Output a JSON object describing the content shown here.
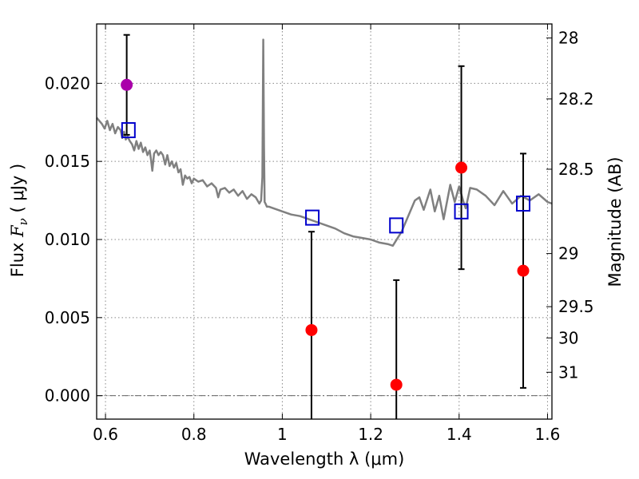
{
  "chart_data": {
    "type": "scatter",
    "xlabel": "Wavelength  λ (μm)",
    "ylabel": "Flux  F_ν  ( μJy )",
    "ylabel_parts": {
      "pre": "Flux  ",
      "var": "F",
      "sub": "ν",
      "post": "  ( μJy )"
    },
    "y2label": "Magnitude (AB)",
    "xlim": [
      0.58,
      1.61
    ],
    "ylim": [
      -0.0015,
      0.0238
    ],
    "grid": true,
    "x_ticks": [
      0.6,
      0.8,
      1.0,
      1.2,
      1.4,
      1.6
    ],
    "x_tick_labels": [
      "0.6",
      "0.8",
      "1",
      "1.2",
      "1.4",
      "1.6"
    ],
    "y_ticks": [
      0.0,
      0.005,
      0.01,
      0.015,
      0.02
    ],
    "y_tick_labels": [
      "0.000",
      "0.005",
      "0.010",
      "0.015",
      "0.020"
    ],
    "mag_ticks": [
      {
        "label": "28",
        "flux": 0.0229
      },
      {
        "label": "28.2",
        "flux": 0.019
      },
      {
        "label": "28.5",
        "flux": 0.0145
      },
      {
        "label": "29",
        "flux": 0.0091
      },
      {
        "label": "29.5",
        "flux": 0.0057
      },
      {
        "label": "30",
        "flux": 0.0037
      },
      {
        "label": "31",
        "flux": 0.0015
      }
    ],
    "colors": {
      "model": "#808080",
      "observed": "#ff0000",
      "highlighted": "#aa00aa",
      "model_band": "#0000cc",
      "errorbar": "#000000",
      "grid": "#888888"
    },
    "model_spectrum": {
      "x": [
        0.58,
        0.592,
        0.598,
        0.604,
        0.61,
        0.616,
        0.622,
        0.628,
        0.634,
        0.638,
        0.642,
        0.646,
        0.65,
        0.655,
        0.66,
        0.665,
        0.67,
        0.675,
        0.68,
        0.685,
        0.69,
        0.695,
        0.7,
        0.703,
        0.706,
        0.71,
        0.715,
        0.72,
        0.725,
        0.73,
        0.735,
        0.74,
        0.745,
        0.75,
        0.755,
        0.76,
        0.765,
        0.77,
        0.775,
        0.78,
        0.785,
        0.79,
        0.795,
        0.8,
        0.81,
        0.82,
        0.83,
        0.84,
        0.85,
        0.855,
        0.86,
        0.87,
        0.88,
        0.89,
        0.9,
        0.91,
        0.92,
        0.93,
        0.94,
        0.948,
        0.952,
        0.955,
        0.957,
        0.9585,
        0.96,
        0.962,
        0.965,
        0.97,
        0.98,
        1.0,
        1.02,
        1.04,
        1.06,
        1.08,
        1.1,
        1.12,
        1.14,
        1.16,
        1.18,
        1.2,
        1.22,
        1.24,
        1.25,
        1.27,
        1.3,
        1.31,
        1.32,
        1.335,
        1.345,
        1.355,
        1.365,
        1.38,
        1.39,
        1.4,
        1.41,
        1.415,
        1.425,
        1.44,
        1.46,
        1.48,
        1.5,
        1.52,
        1.54,
        1.56,
        1.58,
        1.6,
        1.61
      ],
      "y": [
        0.0178,
        0.0174,
        0.0171,
        0.0176,
        0.017,
        0.0174,
        0.0168,
        0.0172,
        0.017,
        0.0165,
        0.0169,
        0.0164,
        0.0166,
        0.0163,
        0.0161,
        0.0157,
        0.0163,
        0.0158,
        0.0162,
        0.0156,
        0.0159,
        0.0154,
        0.0157,
        0.0151,
        0.0144,
        0.0155,
        0.0157,
        0.0154,
        0.0156,
        0.0154,
        0.0148,
        0.0154,
        0.0147,
        0.015,
        0.0146,
        0.0149,
        0.0143,
        0.0145,
        0.0135,
        0.0141,
        0.0139,
        0.014,
        0.0136,
        0.0139,
        0.0137,
        0.0138,
        0.0134,
        0.0136,
        0.0133,
        0.0127,
        0.0132,
        0.0133,
        0.013,
        0.0132,
        0.0128,
        0.0131,
        0.0126,
        0.0129,
        0.0127,
        0.0123,
        0.0125,
        0.014,
        0.0228,
        0.016,
        0.0124,
        0.0123,
        0.0121,
        0.0121,
        0.012,
        0.0118,
        0.0116,
        0.0115,
        0.0113,
        0.0111,
        0.0109,
        0.0107,
        0.0104,
        0.0102,
        0.0101,
        0.01,
        0.0098,
        0.0097,
        0.0096,
        0.0105,
        0.0125,
        0.0127,
        0.0119,
        0.0132,
        0.0118,
        0.0128,
        0.0113,
        0.0135,
        0.0124,
        0.0134,
        0.0124,
        0.012,
        0.0133,
        0.0132,
        0.0128,
        0.0122,
        0.0131,
        0.0123,
        0.0128,
        0.0125,
        0.0129,
        0.0124,
        0.0123
      ]
    },
    "observed": [
      {
        "x": 0.648,
        "y": 0.0199,
        "err": 0.0032,
        "highlight": true
      },
      {
        "x": 1.066,
        "y": 0.0042,
        "err": 0.0063
      },
      {
        "x": 1.258,
        "y": 0.0007,
        "err": 0.0067
      },
      {
        "x": 1.405,
        "y": 0.0146,
        "err": 0.0065
      },
      {
        "x": 1.545,
        "y": 0.008,
        "err": 0.0075
      }
    ],
    "model_band": [
      {
        "x": 0.652,
        "y": 0.017
      },
      {
        "x": 1.068,
        "y": 0.0114
      },
      {
        "x": 1.258,
        "y": 0.0109
      },
      {
        "x": 1.405,
        "y": 0.0118
      },
      {
        "x": 1.545,
        "y": 0.0123
      }
    ]
  }
}
